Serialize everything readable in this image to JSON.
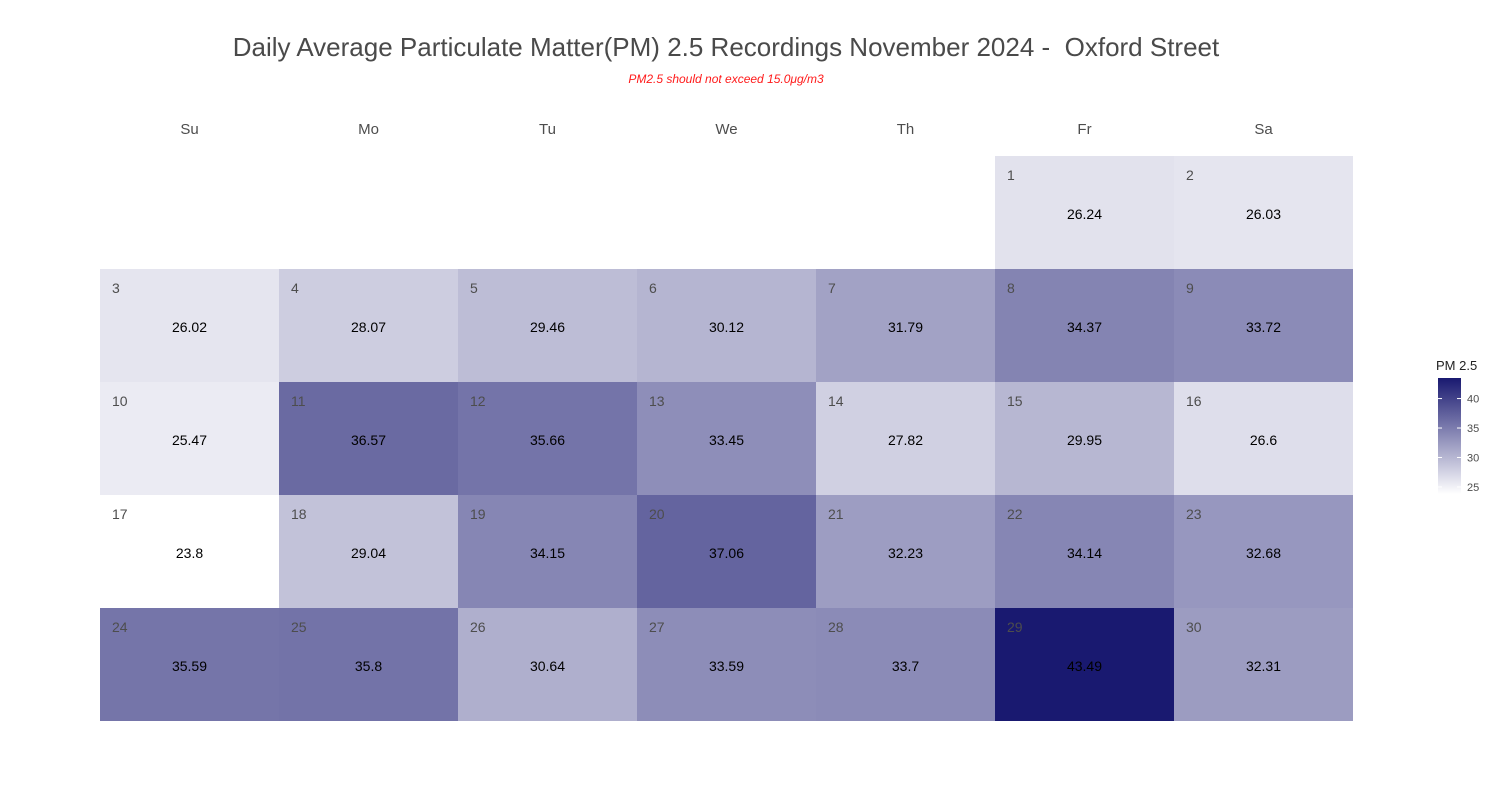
{
  "chart_data": {
    "type": "heatmap",
    "title": "Daily Average Particulate Matter(PM) 2.5 Recordings November 2024 -  Oxford Street",
    "subtitle": "PM2.5 should not exceed 15.0μg/m3",
    "weekdays": [
      "Su",
      "Mo",
      "Tu",
      "We",
      "Th",
      "Fr",
      "Sa"
    ],
    "first_weekday_index": 5,
    "days": [
      1,
      2,
      3,
      4,
      5,
      6,
      7,
      8,
      9,
      10,
      11,
      12,
      13,
      14,
      15,
      16,
      17,
      18,
      19,
      20,
      21,
      22,
      23,
      24,
      25,
      26,
      27,
      28,
      29,
      30
    ],
    "values": [
      26.24,
      26.03,
      26.02,
      28.07,
      29.46,
      30.12,
      31.79,
      34.37,
      33.72,
      25.47,
      36.57,
      35.66,
      33.45,
      27.82,
      29.95,
      26.6,
      23.8,
      29.04,
      34.15,
      37.06,
      32.23,
      34.14,
      32.68,
      35.59,
      35.8,
      30.64,
      33.59,
      33.7,
      43.49,
      32.31
    ],
    "value_labels": [
      "26.24",
      "26.03",
      "26.02",
      "28.07",
      "29.46",
      "30.12",
      "31.79",
      "34.37",
      "33.72",
      "25.47",
      "36.57",
      "35.66",
      "33.45",
      "27.82",
      "29.95",
      "26.6",
      "23.8",
      "29.04",
      "34.15",
      "37.06",
      "32.23",
      "34.14",
      "32.68",
      "35.59",
      "35.8",
      "30.64",
      "33.59",
      "33.7",
      "43.49",
      "32.31"
    ],
    "legend": {
      "title": "PM 2.5",
      "ticks": [
        25,
        30,
        35,
        40
      ],
      "range": [
        23.8,
        43.49
      ],
      "placement": "right"
    },
    "color_low": "#ffffff",
    "color_high": "#191970",
    "grid": false
  }
}
